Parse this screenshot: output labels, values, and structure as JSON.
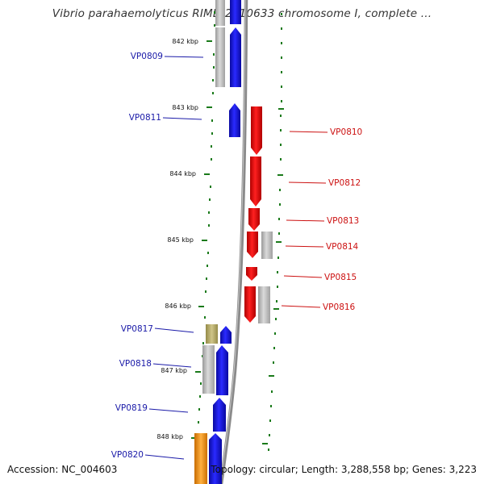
{
  "title": "Vibrio parahaemolyticus RIMD 2210633 chromosome I, complete ...",
  "footer": {
    "accession": "Accession: NC_004603",
    "summary": "Topology: circular; Length: 3,288,558 bp; Genes: 3,223"
  },
  "ticks": [
    "842 kbp",
    "843 kbp",
    "844 kbp",
    "845 kbp",
    "846 kbp",
    "847 kbp",
    "848 kbp"
  ],
  "genes": [
    {
      "label": "VP0809",
      "strand": "forward",
      "color": "#1515c8"
    },
    {
      "label": "VP0810",
      "strand": "reverse",
      "color": "#e01010"
    },
    {
      "label": "VP0811",
      "strand": "forward",
      "color": "#1515c8"
    },
    {
      "label": "VP0812",
      "strand": "reverse",
      "color": "#e01010"
    },
    {
      "label": "VP0813",
      "strand": "reverse",
      "color": "#e01010"
    },
    {
      "label": "VP0814",
      "strand": "reverse",
      "color": "#e01010"
    },
    {
      "label": "VP0815",
      "strand": "reverse",
      "color": "#e01010"
    },
    {
      "label": "VP0816",
      "strand": "reverse",
      "color": "#e01010"
    },
    {
      "label": "VP0817",
      "strand": "forward",
      "color": "#1515c8"
    },
    {
      "label": "VP0818",
      "strand": "forward",
      "color": "#1515c8"
    },
    {
      "label": "VP0819",
      "strand": "forward",
      "color": "#1515c8"
    },
    {
      "label": "VP0820",
      "strand": "forward",
      "color": "#1515c8"
    }
  ],
  "colors": {
    "forward_gene": "#1515c8",
    "reverse_gene": "#e01010",
    "forward_label": "#1a1aa8",
    "reverse_label": "#cc1111",
    "backbone": "#888888",
    "ruler": "#1a7a1a",
    "gray_block": "#bdbdbd",
    "olive_block": "#b8ad6a",
    "orange_block": "#f0900a"
  }
}
